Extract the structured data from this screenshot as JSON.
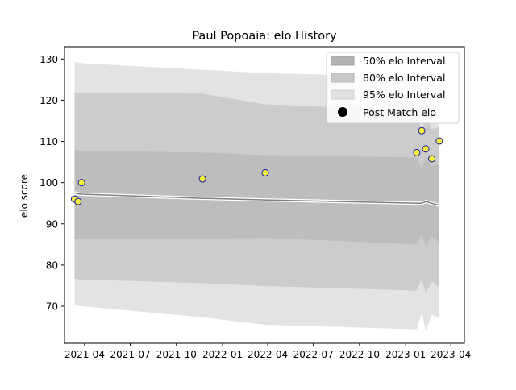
{
  "chart_data": {
    "type": "line",
    "title": "Paul Popoaia: elo History",
    "xlabel": "",
    "ylabel": "elo score",
    "x_axis": {
      "type": "date",
      "range": [
        "2021-02-20",
        "2023-04-28"
      ],
      "ticks": [
        "2021-04",
        "2021-07",
        "2021-10",
        "2022-01",
        "2022-04",
        "2022-07",
        "2022-10",
        "2023-01",
        "2023-04"
      ]
    },
    "y_axis": {
      "range": [
        61,
        133
      ],
      "ticks": [
        70,
        80,
        90,
        100,
        110,
        120,
        130
      ]
    },
    "grid": false,
    "legend": {
      "position": "top-right",
      "entries": [
        "50% elo Interval",
        "80% elo Interval",
        "95% elo Interval",
        "Post Match elo"
      ]
    },
    "colors": {
      "band95": "#e3e3e3",
      "band80": "#cccccc",
      "band50": "#bdbdbd",
      "mean_line": "#808080",
      "point_fill": "#f5ef3c",
      "point_edge": "#1a1aa6"
    },
    "bands": {
      "dates": [
        "2021-03-12",
        "2021-03-19",
        "2021-03-26",
        "2021-11-22",
        "2022-03-27",
        "2023-01-23",
        "2023-02-02",
        "2023-02-10",
        "2023-02-22",
        "2023-03-09"
      ],
      "p95_upper": [
        129.3,
        129.2,
        129.0,
        127.4,
        126.6,
        125.7,
        120.5,
        124.0,
        121.0,
        121.5
      ],
      "p80_upper": [
        121.9,
        121.8,
        121.8,
        121.6,
        119.0,
        117.5,
        112.5,
        116.5,
        113.0,
        113.5
      ],
      "p50_upper": [
        107.9,
        107.9,
        107.8,
        107.3,
        106.7,
        106.1,
        103.5,
        106.0,
        104.0,
        104.8
      ],
      "mean": [
        97.5,
        97.3,
        97.2,
        96.2,
        95.8,
        95.0,
        95.0,
        95.4,
        95.0,
        94.5
      ],
      "p50_lower": [
        86.3,
        86.3,
        86.3,
        86.4,
        86.6,
        85.0,
        87.5,
        84.5,
        87.0,
        85.5
      ],
      "p80_lower": [
        76.7,
        76.6,
        76.5,
        75.6,
        74.9,
        73.8,
        76.5,
        73.0,
        76.0,
        74.5
      ],
      "p95_lower": [
        70.2,
        70.1,
        70.0,
        67.3,
        65.5,
        64.4,
        68.5,
        64.0,
        68.0,
        67.0
      ]
    },
    "points": [
      {
        "x": "2021-03-12",
        "y": 96.0
      },
      {
        "x": "2021-03-19",
        "y": 95.4
      },
      {
        "x": "2021-03-26",
        "y": 100.0
      },
      {
        "x": "2021-11-22",
        "y": 100.9
      },
      {
        "x": "2022-03-27",
        "y": 102.4
      },
      {
        "x": "2023-01-23",
        "y": 107.3
      },
      {
        "x": "2023-02-02",
        "y": 112.6
      },
      {
        "x": "2023-02-10",
        "y": 108.2
      },
      {
        "x": "2023-02-22",
        "y": 105.8
      },
      {
        "x": "2023-03-09",
        "y": 110.1
      }
    ]
  }
}
